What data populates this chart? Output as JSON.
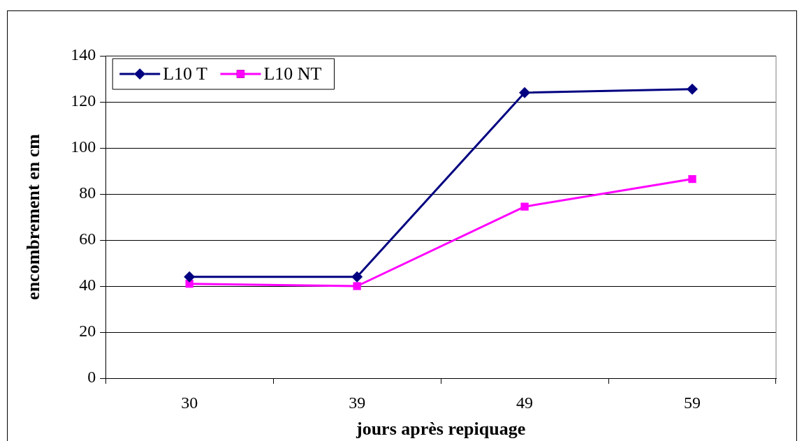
{
  "chart_data": {
    "type": "line",
    "xlabel": "jours après repiquage",
    "ylabel": "encombrement en cm",
    "categories": [
      "30",
      "39",
      "49",
      "59"
    ],
    "series": [
      {
        "name": "L10 T",
        "color": "#000080",
        "marker": "diamond",
        "values": [
          44,
          44,
          124,
          125.5
        ]
      },
      {
        "name": "L10 NT",
        "color": "#ff00ff",
        "marker": "square",
        "values": [
          41,
          40,
          74.5,
          86.5
        ]
      }
    ],
    "ylim": [
      0,
      140
    ],
    "yticks": [
      0,
      20,
      40,
      60,
      80,
      100,
      120,
      140
    ],
    "grid": "y",
    "legend": "top left"
  }
}
